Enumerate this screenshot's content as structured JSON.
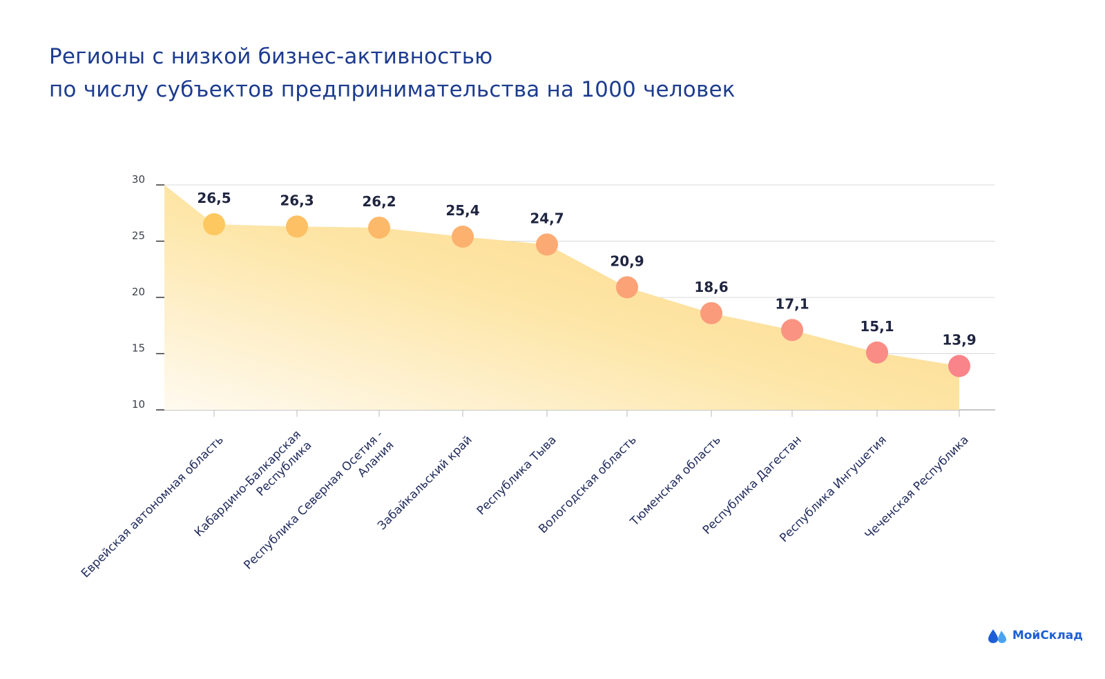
{
  "title": {
    "line1": "Регионы с низкой бизнес-активностью",
    "line2": "по числу субъектов предпринимательства на 1000 человек"
  },
  "brand": {
    "name": "МойСклад",
    "icon": "drops-logo-icon"
  },
  "colors": {
    "title": "#1d3c8f",
    "area_start": "#fde6a8",
    "area_end": "#fdd48a",
    "grid": "#d9d9d9",
    "point_start": "#fdc860",
    "point_end": "#f9848a",
    "brand": "#1e5fd6"
  },
  "chart_data": {
    "type": "area",
    "categories": [
      "Еврейская автономная область",
      "Кабардино-Балкарская Республика",
      "Республика Северная Осетия - Алания",
      "Забайкальский край",
      "Республика Тыва",
      "Вологодская область",
      "Тюменская область",
      "Республика Дагестан",
      "Республика Ингушетия",
      "Чеченская Республика"
    ],
    "category_lines": [
      [
        "Еврейская автономная область"
      ],
      [
        "Кабардино-Балкарская",
        "Республика"
      ],
      [
        "Республика Северная Осетия -",
        "Алания"
      ],
      [
        "Забайкальский край"
      ],
      [
        "Республика Тыва"
      ],
      [
        "Вологодская область"
      ],
      [
        "Тюменская область"
      ],
      [
        "Республика Дагестан"
      ],
      [
        "Республика Ингушетия"
      ],
      [
        "Чеченская Республика"
      ]
    ],
    "values": [
      26.5,
      26.3,
      26.2,
      25.4,
      24.7,
      20.9,
      18.6,
      17.1,
      15.1,
      13.9
    ],
    "value_labels": [
      "26,5",
      "26,3",
      "26,2",
      "25,4",
      "24,7",
      "20,9",
      "18,6",
      "17,1",
      "15,1",
      "13,9"
    ],
    "yticks": [
      10,
      15,
      20,
      25,
      30
    ],
    "ylim": [
      10,
      30
    ],
    "grid": true,
    "legend": "none"
  }
}
